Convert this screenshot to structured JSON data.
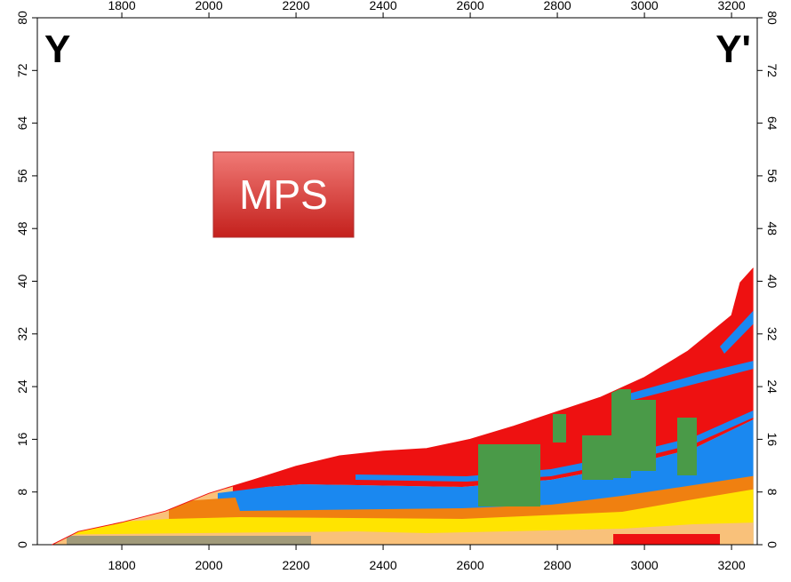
{
  "chart_data": {
    "type": "area",
    "x": [
      1640,
      1700,
      1800,
      1900,
      2000,
      2100,
      2200,
      2300,
      2400,
      2500,
      2600,
      2700,
      2800,
      2900,
      3000,
      3100,
      3200,
      3220,
      3250
    ],
    "values": [
      0,
      2,
      3.4,
      5.1,
      7.8,
      9.8,
      11.9,
      13.5,
      14.2,
      14.6,
      16,
      18,
      20.2,
      22.4,
      25.4,
      29.4,
      34.8,
      39.8,
      42
    ],
    "xlim": [
      1606,
      3259
    ],
    "ylim": [
      0,
      80
    ],
    "xticks": [
      1800,
      2000,
      2200,
      2400,
      2600,
      2800,
      3000,
      3200
    ],
    "yticks": [
      0,
      8,
      16,
      24,
      32,
      40,
      48,
      56,
      64,
      72,
      80
    ],
    "annotations": [
      "Y",
      "Y'",
      "MPS"
    ]
  }
}
